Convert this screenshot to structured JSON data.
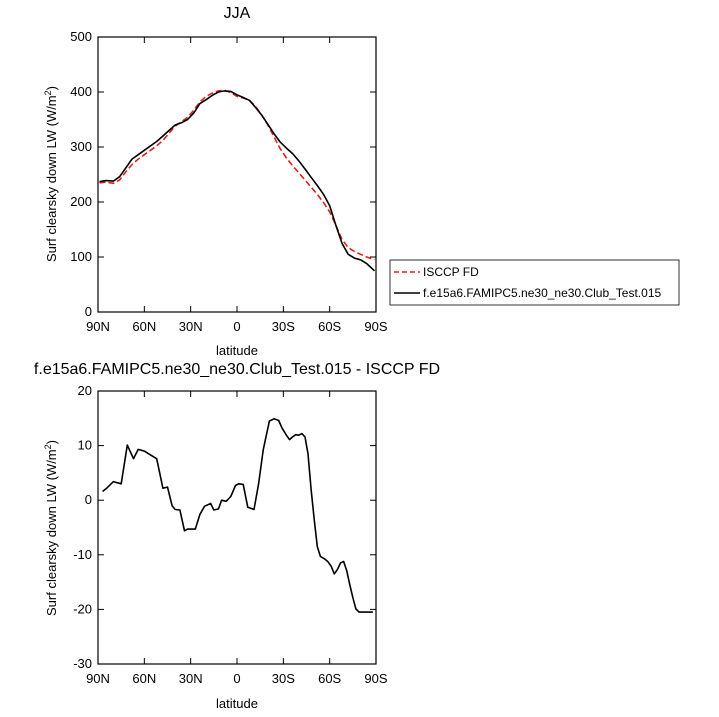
{
  "chart_data": [
    {
      "type": "line",
      "title": "JJA",
      "xlabel": "latitude",
      "ylabel": "Surf clearsky down LW (W/m",
      "ylabel_sup": "2",
      "ylabel_end": ")",
      "xlim": [
        90,
        -90
      ],
      "ylim": [
        0,
        500
      ],
      "x_ticks": [
        90,
        60,
        30,
        0,
        -30,
        -60,
        -90
      ],
      "x_tick_labels": [
        "90N",
        "60N",
        "30N",
        "0",
        "30S",
        "60S",
        "90S"
      ],
      "y_ticks": [
        0,
        100,
        200,
        300,
        400,
        500
      ],
      "y_tick_labels": [
        "0",
        "100",
        "200",
        "300",
        "400",
        "500"
      ],
      "legend_position": "right",
      "series": [
        {
          "name": "ISCCP FD",
          "color": "#e0201b",
          "dash": "dashed",
          "x": [
            89,
            85,
            80,
            76,
            72,
            68,
            64,
            60,
            56,
            52,
            48,
            44,
            40,
            36,
            32,
            28,
            24,
            20,
            16,
            12,
            8,
            4,
            0,
            -4,
            -8,
            -12,
            -16,
            -20,
            -24,
            -28,
            -32,
            -36,
            -40,
            -44,
            -48,
            -52,
            -56,
            -60,
            -64,
            -68,
            -72,
            -76,
            -80,
            -84,
            -89
          ],
          "y": [
            235,
            236,
            234,
            240,
            255,
            268,
            278,
            286,
            294,
            302,
            312,
            325,
            338,
            346,
            354,
            367,
            382,
            392,
            398,
            402,
            403,
            399,
            392,
            389,
            385,
            374,
            358,
            340,
            318,
            297,
            280,
            266,
            253,
            240,
            227,
            214,
            199,
            182,
            158,
            132,
            117,
            110,
            105,
            100,
            95
          ]
        },
        {
          "name": "f.e15a6.FAMIPC5.ne30_ne30.Club_Test.015",
          "color": "#000000",
          "dash": "solid",
          "x": [
            89,
            85,
            80,
            76,
            72,
            68,
            64,
            60,
            56,
            52,
            48,
            44,
            40,
            36,
            32,
            28,
            24,
            20,
            16,
            12,
            8,
            4,
            0,
            -4,
            -8,
            -12,
            -16,
            -20,
            -24,
            -28,
            -32,
            -36,
            -40,
            -44,
            -48,
            -52,
            -56,
            -60,
            -64,
            -68,
            -72,
            -76,
            -80,
            -84,
            -89
          ],
          "y": [
            237,
            239,
            238,
            246,
            262,
            278,
            286,
            294,
            302,
            310,
            320,
            330,
            340,
            344,
            350,
            362,
            379,
            386,
            394,
            400,
            402,
            401,
            395,
            390,
            385,
            372,
            358,
            341,
            324,
            309,
            298,
            288,
            275,
            260,
            245,
            230,
            214,
            193,
            158,
            125,
            105,
            98,
            95,
            88,
            75
          ]
        }
      ]
    },
    {
      "type": "line",
      "title": "f.e15a6.FAMIPC5.ne30_ne30.Club_Test.015 - ISCCP FD",
      "xlabel": "latitude",
      "ylabel": "Surf clearsky down LW (W/m",
      "ylabel_sup": "2",
      "ylabel_end": ")",
      "xlim": [
        90,
        -90
      ],
      "ylim": [
        -30,
        20
      ],
      "x_ticks": [
        90,
        60,
        30,
        0,
        -30,
        -60,
        -90
      ],
      "x_tick_labels": [
        "90N",
        "60N",
        "30N",
        "0",
        "30S",
        "60S",
        "90S"
      ],
      "y_ticks": [
        -30,
        -20,
        -10,
        0,
        10,
        20
      ],
      "y_tick_labels": [
        "-30",
        "-20",
        "-10",
        "0",
        "10",
        "20"
      ],
      "series": [
        {
          "color": "#000000",
          "x": [
            87,
            84,
            80,
            75,
            71,
            67,
            64,
            60,
            56,
            52,
            48,
            45,
            42,
            40,
            37,
            34,
            32,
            29,
            27,
            24,
            21,
            17,
            15,
            12,
            10,
            7,
            4,
            1,
            -1,
            -4,
            -7,
            -11,
            -14,
            -17,
            -21,
            -24,
            -27,
            -29,
            -32,
            -34,
            -36,
            -38,
            -40,
            -42,
            -44,
            -46,
            -48,
            -50,
            -52,
            -54,
            -57,
            -59,
            -61,
            -63,
            -65,
            -67,
            -69,
            -71,
            -73,
            -75,
            -77,
            -79,
            -81,
            -83,
            -85,
            -86,
            -88
          ],
          "y": [
            1.6,
            2.3,
            3.4,
            3.0,
            10.1,
            7.6,
            9.3,
            9.0,
            8.3,
            7.6,
            2.2,
            2.4,
            -1.0,
            -1.7,
            -1.8,
            -5.6,
            -5.3,
            -5.3,
            -5.3,
            -2.6,
            -1.1,
            -0.6,
            -1.8,
            -1.6,
            0.0,
            -0.2,
            0.7,
            2.7,
            3.0,
            2.9,
            -1.3,
            -1.7,
            3.0,
            9.3,
            14.5,
            14.9,
            14.6,
            13.3,
            11.9,
            11.1,
            11.6,
            12.0,
            11.9,
            12.2,
            11.6,
            8.5,
            2.0,
            -3.5,
            -8.5,
            -10.3,
            -10.8,
            -11.3,
            -12.1,
            -13.5,
            -12.7,
            -11.5,
            -11.2,
            -12.9,
            -15.4,
            -17.8,
            -19.9,
            -20.5,
            -20.5,
            -20.5,
            -20.5,
            -20.5,
            -20.5
          ]
        }
      ]
    }
  ]
}
